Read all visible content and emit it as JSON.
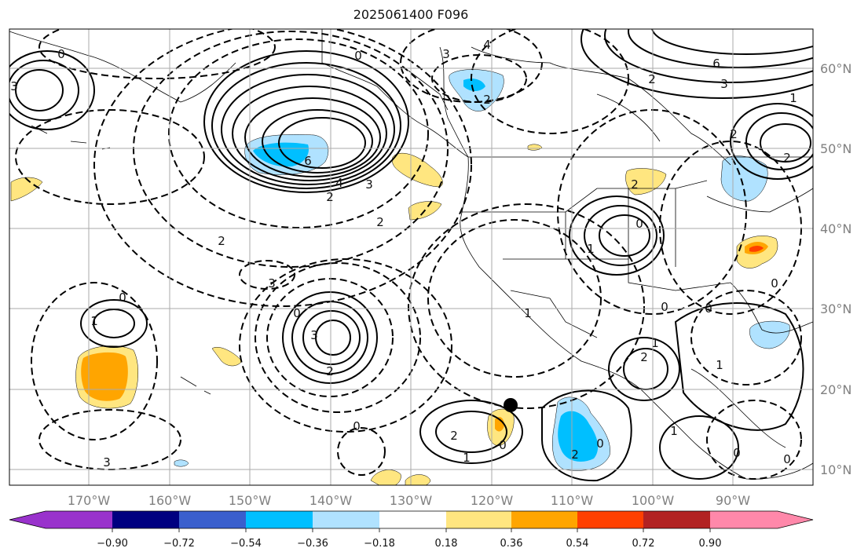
{
  "map": {
    "title": "2025061400 F096",
    "lon_labels": [
      "170°W",
      "160°W",
      "150°W",
      "140°W",
      "130°W",
      "120°W",
      "110°W",
      "100°W",
      "90°W"
    ],
    "lat_labels": [
      "60°N",
      "50°N",
      "40°N",
      "30°N",
      "20°N",
      "10°N"
    ],
    "contour_labels": [
      "0",
      "3",
      "0",
      "2",
      "4",
      "3",
      "6",
      "4",
      "3",
      "2",
      "2",
      "6",
      "2",
      "3",
      "1",
      "2",
      "2",
      "3",
      "0",
      "3",
      "2",
      "0",
      "1",
      "2",
      "1",
      "0",
      "1",
      "2",
      "1",
      "0",
      "2",
      "0",
      "1",
      "0",
      "1",
      "0",
      "0",
      "2",
      "3",
      "0",
      "2",
      "1",
      "0",
      "0"
    ]
  },
  "colorbar": {
    "ticks": [
      "−0.90",
      "−0.72",
      "−0.54",
      "−0.36",
      "−0.18",
      "0.18",
      "0.36",
      "0.54",
      "0.72",
      "0.90"
    ],
    "colors": [
      "#9932cc",
      "#000080",
      "#3a5fcd",
      "#00bfff",
      "#b0e2ff",
      "#ffffff",
      "#ffe680",
      "#ffa500",
      "#ff4000",
      "#b22222",
      "#ff88aa"
    ],
    "extend": "both"
  },
  "colors": {
    "grid": "#aaaaaa",
    "contour": "#000000",
    "coast": "#000000"
  }
}
